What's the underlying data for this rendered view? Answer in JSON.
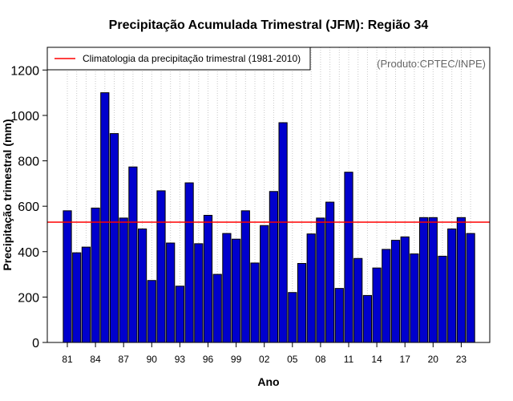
{
  "chart_data": {
    "type": "bar",
    "title": "Precipitação Acumulada Trimestral (JFM): Região 34",
    "xlabel": "Ano",
    "ylabel": "Precipitação trimestral (mm)",
    "ylim": [
      0,
      1300
    ],
    "yticks": [
      0,
      200,
      400,
      600,
      800,
      1000,
      1200
    ],
    "xtick_labels": [
      "81",
      "84",
      "87",
      "90",
      "93",
      "96",
      "99",
      "02",
      "05",
      "08",
      "11",
      "14",
      "17",
      "20",
      "23"
    ],
    "categories": [
      "1981",
      "1982",
      "1983",
      "1984",
      "1985",
      "1986",
      "1987",
      "1988",
      "1989",
      "1990",
      "1991",
      "1992",
      "1993",
      "1994",
      "1995",
      "1996",
      "1997",
      "1998",
      "1999",
      "2000",
      "2001",
      "2002",
      "2003",
      "2004",
      "2005",
      "2006",
      "2007",
      "2008",
      "2009",
      "2010",
      "2011",
      "2012",
      "2013",
      "2014",
      "2015",
      "2016",
      "2017",
      "2018",
      "2019",
      "2020",
      "2021",
      "2022",
      "2023",
      "2024"
    ],
    "values": [
      580,
      395,
      420,
      592,
      1100,
      920,
      548,
      773,
      500,
      273,
      668,
      438,
      248,
      703,
      435,
      560,
      300,
      480,
      455,
      580,
      350,
      515,
      665,
      968,
      220,
      348,
      478,
      548,
      618,
      238,
      750,
      370,
      207,
      328,
      410,
      450,
      465,
      390,
      550,
      550,
      380,
      500,
      550,
      480
    ],
    "climatology": 530,
    "legend": [
      "Climatologia da precipitação trimestral (1981-2010)"
    ],
    "legend_position": "top-left",
    "credit": "(Produto:CPTEC/INPE)",
    "grid": "vertical dotted",
    "colors": {
      "bar": "#0000cd",
      "bar_edge": "#000000",
      "climatology": "#ff0000",
      "grid": "#c8c8c8"
    }
  }
}
